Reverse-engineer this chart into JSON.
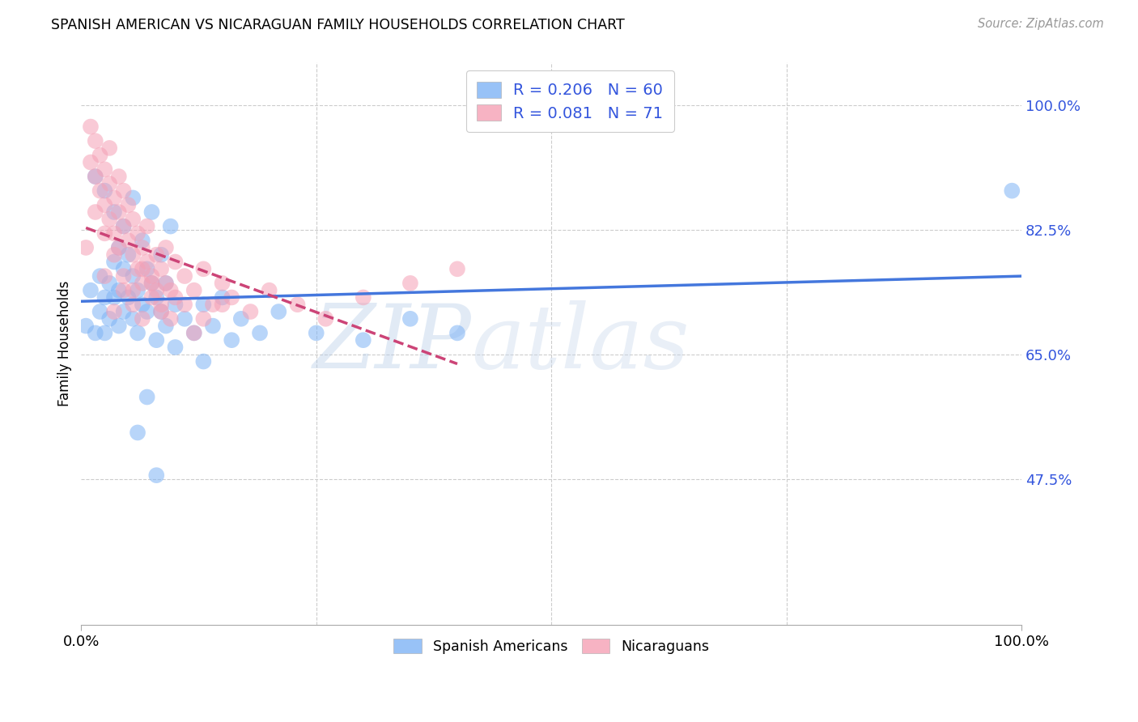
{
  "title": "SPANISH AMERICAN VS NICARAGUAN FAMILY HOUSEHOLDS CORRELATION CHART",
  "source": "Source: ZipAtlas.com",
  "ylabel": "Family Households",
  "legend_label1": "Spanish Americans",
  "legend_label2": "Nicaraguans",
  "blue_color": "#7EB3F5",
  "pink_color": "#F5A0B5",
  "trend_blue": "#4477DD",
  "trend_pink": "#CC4477",
  "watermark_zip": "ZIP",
  "watermark_atlas": "atlas",
  "watermark_color_zip": "#B8D0EE",
  "watermark_color_atlas": "#C8D8E8",
  "background_color": "#FFFFFF",
  "grid_color": "#CCCCCC",
  "xlim": [
    0.0,
    1.0
  ],
  "ylim": [
    0.27,
    1.06
  ],
  "y_tick_right_values": [
    0.475,
    0.65,
    0.825,
    1.0
  ],
  "y_tick_right_labels": [
    "47.5%",
    "65.0%",
    "82.5%",
    "100.0%"
  ],
  "blue_R": 0.206,
  "blue_N": 60,
  "pink_R": 0.081,
  "pink_N": 71,
  "blue_x": [
    0.005,
    0.01,
    0.015,
    0.02,
    0.02,
    0.025,
    0.025,
    0.03,
    0.03,
    0.035,
    0.035,
    0.04,
    0.04,
    0.04,
    0.045,
    0.045,
    0.05,
    0.05,
    0.055,
    0.055,
    0.06,
    0.06,
    0.065,
    0.07,
    0.07,
    0.075,
    0.08,
    0.08,
    0.085,
    0.09,
    0.09,
    0.1,
    0.1,
    0.11,
    0.12,
    0.13,
    0.14,
    0.15,
    0.17,
    0.19,
    0.21,
    0.25,
    0.3,
    0.35,
    0.4,
    0.045,
    0.055,
    0.065,
    0.075,
    0.085,
    0.095,
    0.015,
    0.025,
    0.035,
    0.13,
    0.16,
    0.08,
    0.06,
    0.07,
    0.99
  ],
  "blue_y": [
    0.69,
    0.74,
    0.68,
    0.71,
    0.76,
    0.73,
    0.68,
    0.75,
    0.7,
    0.78,
    0.73,
    0.8,
    0.74,
    0.69,
    0.77,
    0.71,
    0.79,
    0.73,
    0.76,
    0.7,
    0.74,
    0.68,
    0.72,
    0.77,
    0.71,
    0.75,
    0.73,
    0.67,
    0.71,
    0.75,
    0.69,
    0.72,
    0.66,
    0.7,
    0.68,
    0.72,
    0.69,
    0.73,
    0.7,
    0.68,
    0.71,
    0.68,
    0.67,
    0.7,
    0.68,
    0.83,
    0.87,
    0.81,
    0.85,
    0.79,
    0.83,
    0.9,
    0.88,
    0.85,
    0.64,
    0.67,
    0.48,
    0.54,
    0.59,
    0.88
  ],
  "pink_x": [
    0.005,
    0.01,
    0.01,
    0.015,
    0.015,
    0.02,
    0.02,
    0.025,
    0.025,
    0.03,
    0.03,
    0.03,
    0.035,
    0.035,
    0.04,
    0.04,
    0.04,
    0.045,
    0.045,
    0.05,
    0.05,
    0.055,
    0.055,
    0.06,
    0.06,
    0.065,
    0.065,
    0.07,
    0.07,
    0.075,
    0.08,
    0.08,
    0.085,
    0.09,
    0.09,
    0.1,
    0.1,
    0.11,
    0.12,
    0.13,
    0.14,
    0.15,
    0.16,
    0.18,
    0.2,
    0.23,
    0.26,
    0.3,
    0.35,
    0.4,
    0.025,
    0.035,
    0.045,
    0.055,
    0.065,
    0.075,
    0.085,
    0.095,
    0.11,
    0.13,
    0.015,
    0.025,
    0.035,
    0.045,
    0.055,
    0.065,
    0.075,
    0.085,
    0.095,
    0.12,
    0.15
  ],
  "pink_y": [
    0.8,
    0.92,
    0.97,
    0.9,
    0.95,
    0.88,
    0.93,
    0.86,
    0.91,
    0.89,
    0.84,
    0.94,
    0.87,
    0.82,
    0.9,
    0.85,
    0.8,
    0.88,
    0.83,
    0.86,
    0.81,
    0.84,
    0.79,
    0.82,
    0.77,
    0.8,
    0.75,
    0.83,
    0.78,
    0.76,
    0.79,
    0.74,
    0.77,
    0.8,
    0.75,
    0.78,
    0.73,
    0.76,
    0.74,
    0.77,
    0.72,
    0.75,
    0.73,
    0.71,
    0.74,
    0.72,
    0.7,
    0.73,
    0.75,
    0.77,
    0.76,
    0.71,
    0.74,
    0.72,
    0.7,
    0.73,
    0.71,
    0.74,
    0.72,
    0.7,
    0.85,
    0.82,
    0.79,
    0.76,
    0.74,
    0.77,
    0.75,
    0.72,
    0.7,
    0.68,
    0.72
  ]
}
